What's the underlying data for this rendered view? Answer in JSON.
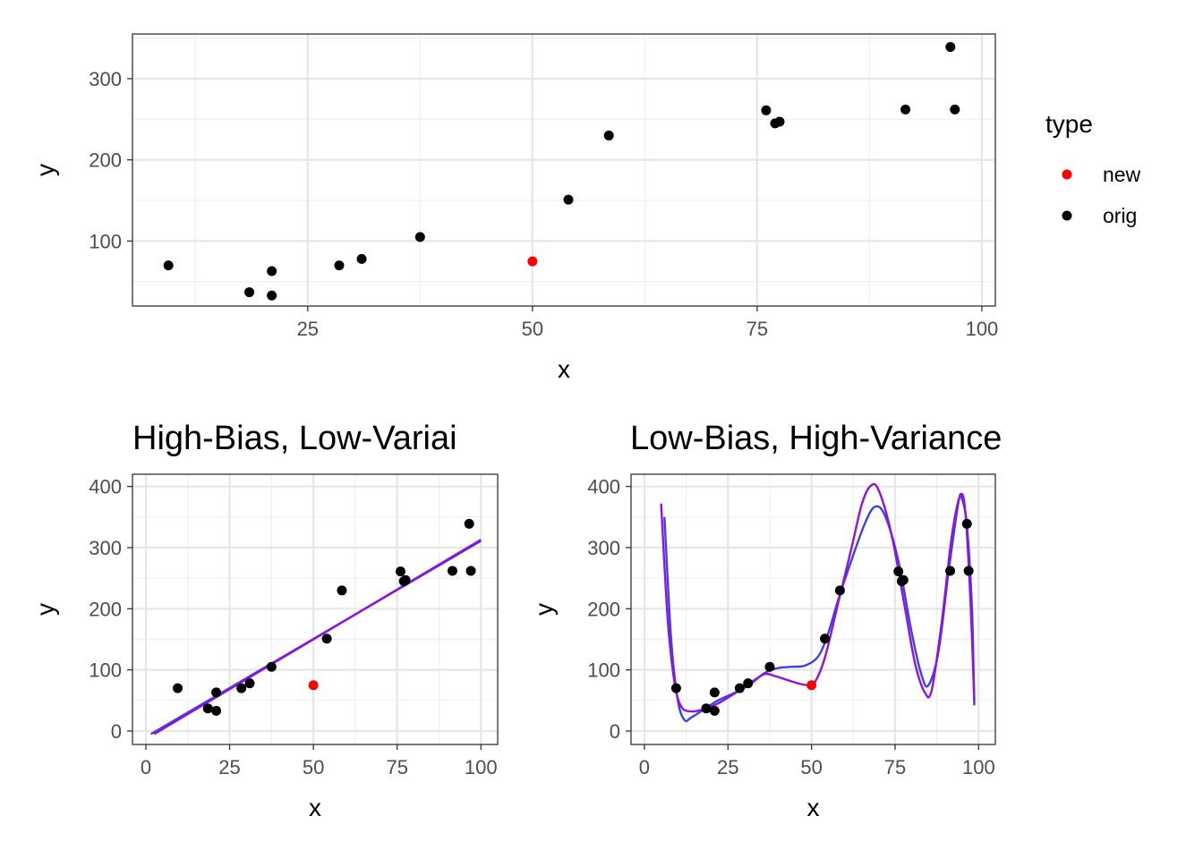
{
  "chart_data": [
    {
      "id": "top",
      "type": "scatter",
      "title": "",
      "xlabel": "x",
      "ylabel": "y",
      "xlim": [
        5.5,
        101.5
      ],
      "ylim": [
        20,
        355
      ],
      "xticks": [
        25,
        50,
        75,
        100
      ],
      "yticks": [
        100,
        200,
        300
      ],
      "grid": true,
      "legend": {
        "title": "type",
        "position": "right",
        "entries": [
          {
            "label": "new",
            "color": "#ff0000"
          },
          {
            "label": "orig",
            "color": "#000000"
          }
        ]
      },
      "series": [
        {
          "name": "orig",
          "color": "#000000",
          "points": [
            [
              9.5,
              70
            ],
            [
              18.5,
              37
            ],
            [
              21,
              63
            ],
            [
              21,
              33
            ],
            [
              28.5,
              70
            ],
            [
              31,
              78
            ],
            [
              37.5,
              105
            ],
            [
              54,
              151
            ],
            [
              58.5,
              230
            ],
            [
              76,
              261
            ],
            [
              77,
              245
            ],
            [
              77.5,
              247
            ],
            [
              91.5,
              262
            ],
            [
              96.5,
              339
            ],
            [
              97,
              262
            ]
          ]
        },
        {
          "name": "new",
          "color": "#ff0000",
          "points": [
            [
              50,
              75
            ]
          ]
        }
      ]
    },
    {
      "id": "bottom-left",
      "type": "line",
      "title": "High-Bias, Low-Variai",
      "xlabel": "x",
      "ylabel": "y",
      "xlim": [
        -4,
        105
      ],
      "ylim": [
        -22,
        420
      ],
      "xticks": [
        0,
        25,
        50,
        75,
        100
      ],
      "yticks": [
        0,
        100,
        200,
        300,
        400
      ],
      "grid": true,
      "series": [
        {
          "color": "#3f3fe6",
          "points": [
            [
              1.5,
              -5
            ],
            [
              100,
              311
            ]
          ]
        },
        {
          "color": "#9012e0",
          "points": [
            [
              2.5,
              -5
            ],
            [
              100,
              313
            ]
          ]
        }
      ],
      "scatter": [
        {
          "color": "#000000",
          "points": [
            [
              9.5,
              70
            ],
            [
              18.5,
              37
            ],
            [
              21,
              63
            ],
            [
              21,
              33
            ],
            [
              28.5,
              70
            ],
            [
              31,
              78
            ],
            [
              37.5,
              105
            ],
            [
              54,
              151
            ],
            [
              58.5,
              230
            ],
            [
              76,
              261
            ],
            [
              77,
              245
            ],
            [
              77.5,
              247
            ],
            [
              91.5,
              262
            ],
            [
              96.5,
              339
            ],
            [
              97,
              262
            ]
          ]
        },
        {
          "color": "#ff0000",
          "points": [
            [
              50,
              75
            ]
          ]
        }
      ]
    },
    {
      "id": "bottom-right",
      "type": "line",
      "title": "Low-Bias, High-Variance",
      "xlabel": "x",
      "ylabel": "y",
      "xlim": [
        -4,
        105
      ],
      "ylim": [
        -22,
        420
      ],
      "xticks": [
        0,
        25,
        50,
        75,
        100
      ],
      "yticks": [
        0,
        100,
        200,
        300,
        400
      ],
      "grid": true,
      "series": [
        {
          "color": "#3f3fe6",
          "points": [
            [
              6,
              350
            ],
            [
              8,
              150
            ],
            [
              10,
              50
            ],
            [
              12,
              18
            ],
            [
              14,
              22
            ],
            [
              18,
              36
            ],
            [
              22,
              50
            ],
            [
              28,
              65
            ],
            [
              32,
              78
            ],
            [
              36,
              95
            ],
            [
              40,
              103
            ],
            [
              44,
              105
            ],
            [
              48,
              107
            ],
            [
              52,
              122
            ],
            [
              55,
              160
            ],
            [
              58,
              215
            ],
            [
              62,
              280
            ],
            [
              66,
              340
            ],
            [
              69,
              367
            ],
            [
              72,
              352
            ],
            [
              76,
              278
            ],
            [
              80,
              160
            ],
            [
              83,
              90
            ],
            [
              85,
              75
            ],
            [
              88,
              130
            ],
            [
              91,
              260
            ],
            [
              94,
              375
            ],
            [
              95,
              380
            ],
            [
              96.5,
              335
            ],
            [
              98,
              200
            ],
            [
              98.7,
              42
            ]
          ]
        },
        {
          "color": "#9012e0",
          "points": [
            [
              5,
              372
            ],
            [
              7,
              180
            ],
            [
              9,
              80
            ],
            [
              11,
              40
            ],
            [
              14,
              32
            ],
            [
              18,
              36
            ],
            [
              22,
              45
            ],
            [
              28,
              65
            ],
            [
              32,
              80
            ],
            [
              36,
              93
            ],
            [
              39,
              90
            ],
            [
              43,
              83
            ],
            [
              46,
              78
            ],
            [
              49,
              75
            ],
            [
              51,
              80
            ],
            [
              54,
              120
            ],
            [
              58,
              210
            ],
            [
              62,
              300
            ],
            [
              65,
              370
            ],
            [
              67.5,
              400
            ],
            [
              70,
              395
            ],
            [
              74,
              320
            ],
            [
              78,
              200
            ],
            [
              81,
              110
            ],
            [
              84,
              62
            ],
            [
              86,
              68
            ],
            [
              89,
              180
            ],
            [
              92,
              320
            ],
            [
              94.5,
              385
            ],
            [
              96,
              360
            ],
            [
              97.5,
              220
            ],
            [
              98.7,
              50
            ]
          ]
        }
      ],
      "scatter": [
        {
          "color": "#000000",
          "points": [
            [
              9.5,
              70
            ],
            [
              18.5,
              37
            ],
            [
              21,
              63
            ],
            [
              21,
              33
            ],
            [
              28.5,
              70
            ],
            [
              31,
              78
            ],
            [
              37.5,
              105
            ],
            [
              54,
              151
            ],
            [
              58.5,
              230
            ],
            [
              76,
              261
            ],
            [
              77,
              245
            ],
            [
              77.5,
              247
            ],
            [
              91.5,
              262
            ],
            [
              96.5,
              339
            ],
            [
              97,
              262
            ]
          ]
        },
        {
          "color": "#ff0000",
          "points": [
            [
              50,
              75
            ]
          ]
        }
      ]
    }
  ]
}
